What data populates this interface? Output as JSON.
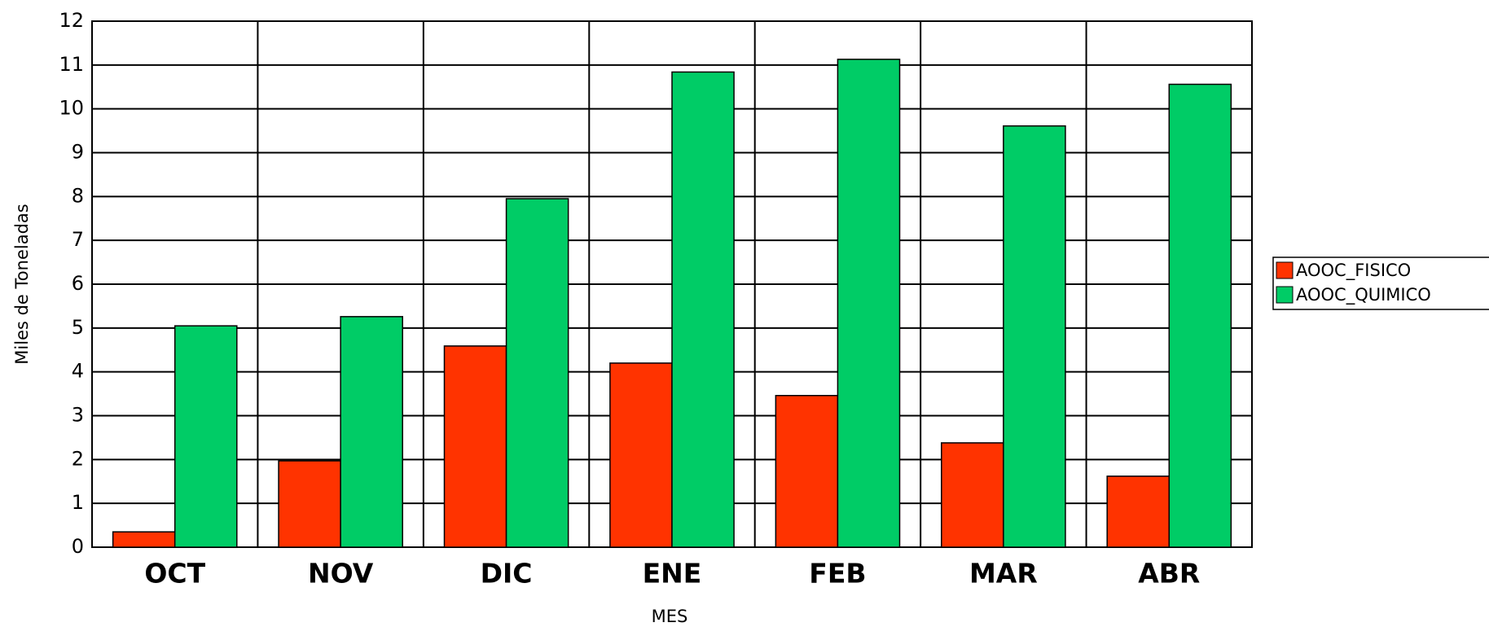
{
  "chart_data": {
    "type": "bar",
    "x_label": "MES",
    "y_label": "Miles de Toneladas",
    "categories": [
      "OCT",
      "NOV",
      "DIC",
      "ENE",
      "FEB",
      "MAR",
      "ABR"
    ],
    "series": [
      {
        "name": "AOOC_FISICO",
        "color": "#ff3300",
        "values": [
          0.35,
          1.97,
          4.59,
          4.2,
          3.46,
          2.38,
          1.62
        ]
      },
      {
        "name": "AOOC_QUIMICO",
        "color": "#00cc66",
        "values": [
          5.05,
          5.26,
          7.95,
          10.84,
          11.13,
          9.61,
          10.56
        ]
      }
    ],
    "ylim": [
      0,
      12
    ],
    "yticks": [
      0,
      1,
      2,
      3,
      4,
      5,
      6,
      7,
      8,
      9,
      10,
      11,
      12
    ],
    "grid": true,
    "legend": "right"
  }
}
